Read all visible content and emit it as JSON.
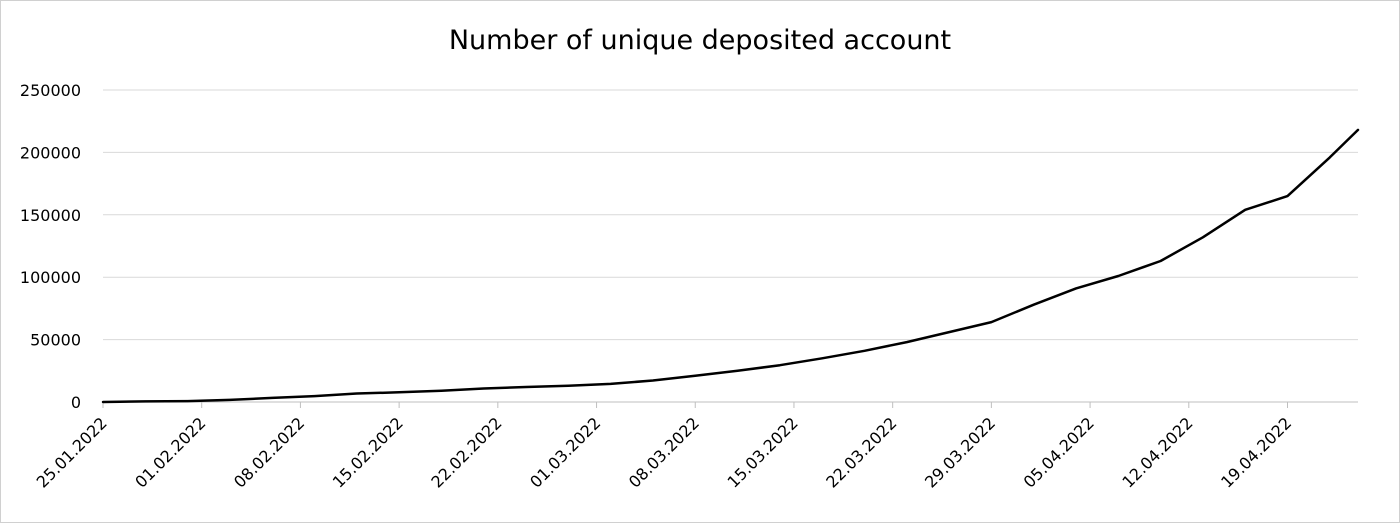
{
  "chart_data": {
    "type": "line",
    "title": "Number of unique deposited account",
    "xlabel": "",
    "ylabel": "",
    "ylim": [
      0,
      250000
    ],
    "y_ticks": [
      0,
      50000,
      100000,
      150000,
      200000,
      250000
    ],
    "y_tick_labels": [
      "0",
      "50000",
      "100000",
      "150000",
      "200000",
      "250000"
    ],
    "grid": true,
    "legend": "none",
    "x_range": [
      "2022-01-25",
      "2022-04-24"
    ],
    "x_ticks": [
      "2022-01-25",
      "2022-02-01",
      "2022-02-08",
      "2022-02-15",
      "2022-02-22",
      "2022-03-01",
      "2022-03-08",
      "2022-03-15",
      "2022-03-22",
      "2022-03-29",
      "2022-04-05",
      "2022-04-12",
      "2022-04-19"
    ],
    "x_tick_labels": [
      "25.01.2022",
      "01.02.2022",
      "08.02.2022",
      "15.02.2022",
      "22.02.2022",
      "01.03.2022",
      "08.03.2022",
      "15.03.2022",
      "22.03.2022",
      "29.03.2022",
      "05.04.2022",
      "12.04.2022",
      "19.04.2022"
    ],
    "colors": {
      "line": "#000000",
      "grid": "#d9d9d9",
      "axis": "#bfbfbf"
    },
    "series": [
      {
        "x": [
          "2022-01-25",
          "2022-01-28",
          "2022-01-31",
          "2022-02-03",
          "2022-02-06",
          "2022-02-09",
          "2022-02-12",
          "2022-02-15",
          "2022-02-18",
          "2022-02-21",
          "2022-02-24",
          "2022-02-27",
          "2022-03-02",
          "2022-03-05",
          "2022-03-08",
          "2022-03-11",
          "2022-03-14",
          "2022-03-17",
          "2022-03-20",
          "2022-03-23",
          "2022-03-26",
          "2022-03-29",
          "2022-04-01",
          "2022-04-04",
          "2022-04-07",
          "2022-04-10",
          "2022-04-13",
          "2022-04-16",
          "2022-04-19",
          "2022-04-22",
          "2022-04-24"
        ],
        "values": [
          0,
          500,
          700,
          1700,
          3300,
          4700,
          6800,
          7800,
          9000,
          10800,
          12000,
          13000,
          14500,
          17200,
          21000,
          25000,
          29500,
          35000,
          41000,
          48000,
          56000,
          64000,
          78000,
          91000,
          101000,
          113000,
          132000,
          154000,
          165000,
          196000,
          218000
        ]
      }
    ]
  }
}
